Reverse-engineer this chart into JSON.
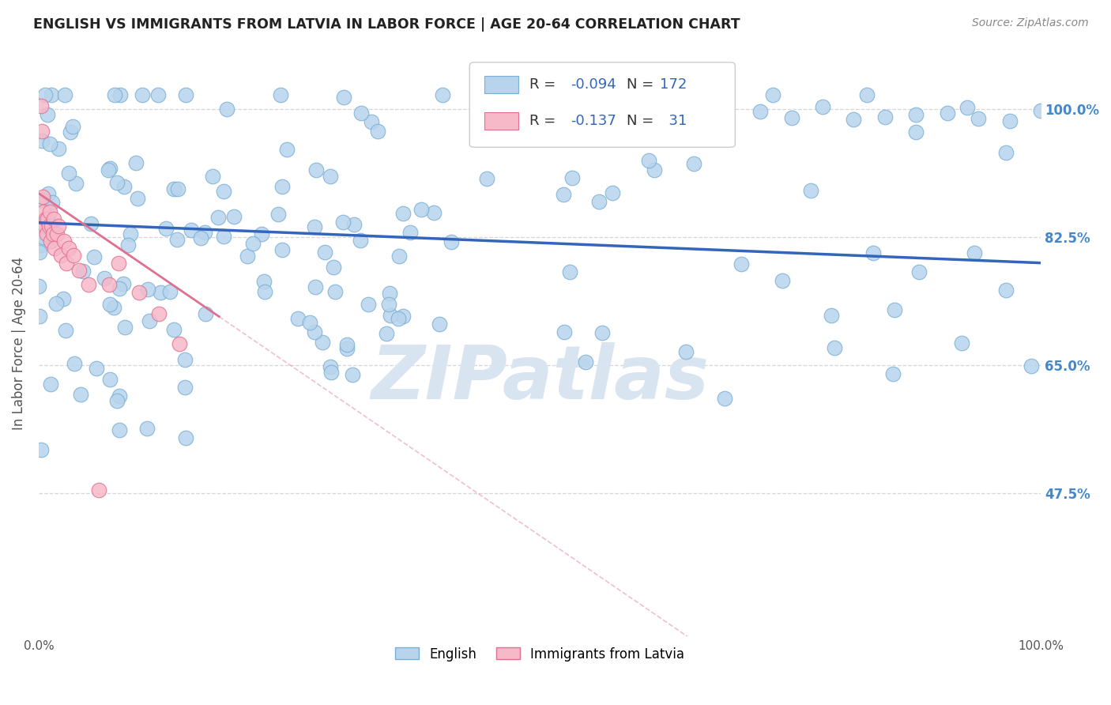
{
  "title": "ENGLISH VS IMMIGRANTS FROM LATVIA IN LABOR FORCE | AGE 20-64 CORRELATION CHART",
  "source": "Source: ZipAtlas.com",
  "ylabel": "In Labor Force | Age 20-64",
  "ytick_labels": [
    "47.5%",
    "65.0%",
    "82.5%",
    "100.0%"
  ],
  "ytick_values": [
    0.475,
    0.65,
    0.825,
    1.0
  ],
  "legend_english_R": "-0.094",
  "legend_english_N": "172",
  "legend_latvia_R": "-0.137",
  "legend_latvia_N": "31",
  "english_color": "#b8d4ed",
  "english_edge_color": "#7aafd4",
  "latvia_color": "#f7b8c8",
  "latvia_edge_color": "#e07090",
  "english_trend_color": "#3366bb",
  "latvia_trend_color": "#e07090",
  "background_color": "#ffffff",
  "grid_color": "#cccccc",
  "watermark_text": "ZIPatlas",
  "watermark_color": "#d8e4f0",
  "title_color": "#222222",
  "axis_label_color": "#555555",
  "right_ytick_color": "#4488cc",
  "ylim_low": 0.28,
  "ylim_high": 1.08,
  "xlim_low": 0.0,
  "xlim_high": 1.0
}
